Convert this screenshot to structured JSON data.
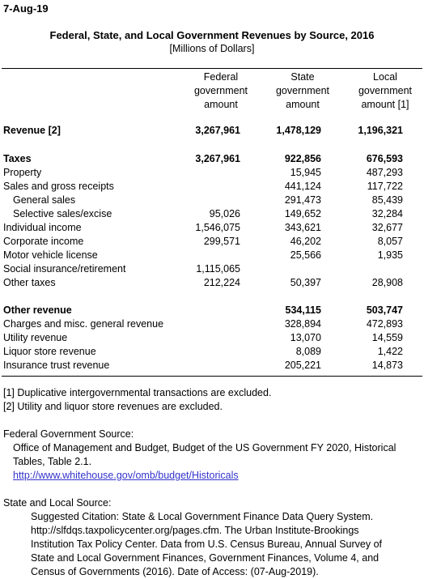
{
  "date": "7-Aug-19",
  "title": "Federal, State, and Local Government Revenues by Source, 2016",
  "subtitle": "[Millions of Dollars]",
  "columns": [
    [
      "Federal",
      "government",
      "amount"
    ],
    [
      "State",
      "government",
      "amount"
    ],
    [
      "Local",
      "government",
      "amount [1]"
    ]
  ],
  "rows": [
    {
      "label": "Revenue [2]",
      "federal": "3,267,961",
      "state": "1,478,129",
      "local": "1,196,321"
    },
    {
      "label": "Taxes",
      "federal": "3,267,961",
      "state": "922,856",
      "local": "676,593"
    },
    {
      "label": "Property",
      "federal": "",
      "state": "15,945",
      "local": "487,293"
    },
    {
      "label": "Sales and gross receipts",
      "federal": "",
      "state": "441,124",
      "local": "117,722"
    },
    {
      "label": "General sales",
      "federal": "",
      "state": "291,473",
      "local": "85,439"
    },
    {
      "label": "Selective sales/excise",
      "federal": "95,026",
      "state": "149,652",
      "local": "32,284"
    },
    {
      "label": "Individual income",
      "federal": "1,546,075",
      "state": "343,621",
      "local": "32,677"
    },
    {
      "label": "Corporate income",
      "federal": "299,571",
      "state": "46,202",
      "local": "8,057"
    },
    {
      "label": "Motor vehicle license",
      "federal": "",
      "state": "25,566",
      "local": "1,935"
    },
    {
      "label": "Social insurance/retirement",
      "federal": "1,115,065",
      "state": "",
      "local": ""
    },
    {
      "label": "Other taxes",
      "federal": "212,224",
      "state": "50,397",
      "local": "28,908"
    },
    {
      "label": "Other revenue",
      "federal": "",
      "state": "534,115",
      "local": "503,747"
    },
    {
      "label": "Charges and misc. general revenue",
      "federal": "",
      "state": "328,894",
      "local": "472,893"
    },
    {
      "label": "Utility revenue",
      "federal": "",
      "state": "13,070",
      "local": "14,559"
    },
    {
      "label": "Liquor store revenue",
      "federal": "",
      "state": "8,089",
      "local": "1,422"
    },
    {
      "label": "Insurance trust revenue",
      "federal": "",
      "state": "205,221",
      "local": "14,873"
    }
  ],
  "notes": [
    "[1] Duplicative intergovernmental transactions are excluded.",
    "[2] Utility and liquor store revenues are excluded."
  ],
  "federal_source": {
    "heading": "Federal Government Source:",
    "lines": [
      "Office of Management and Budget, Budget of the US Government FY 2020, Historical",
      "Tables, Table 2.1."
    ],
    "link": "http://www.whitehouse.gov/omb/budget/Historicals"
  },
  "state_local_source": {
    "heading": "State and Local Source:",
    "lines": [
      "Suggested Citation: State & Local Government Finance Data Query System.",
      "http://slfdqs.taxpolicycenter.org/pages.cfm. The Urban Institute-Brookings",
      "Institution Tax Policy Center. Data from U.S. Census Bureau, Annual Survey of",
      "State and Local Government Finances, Government Finances, Volume 4, and",
      "Census of Governments (2016). Date of Access: (07-Aug-2019)."
    ]
  }
}
